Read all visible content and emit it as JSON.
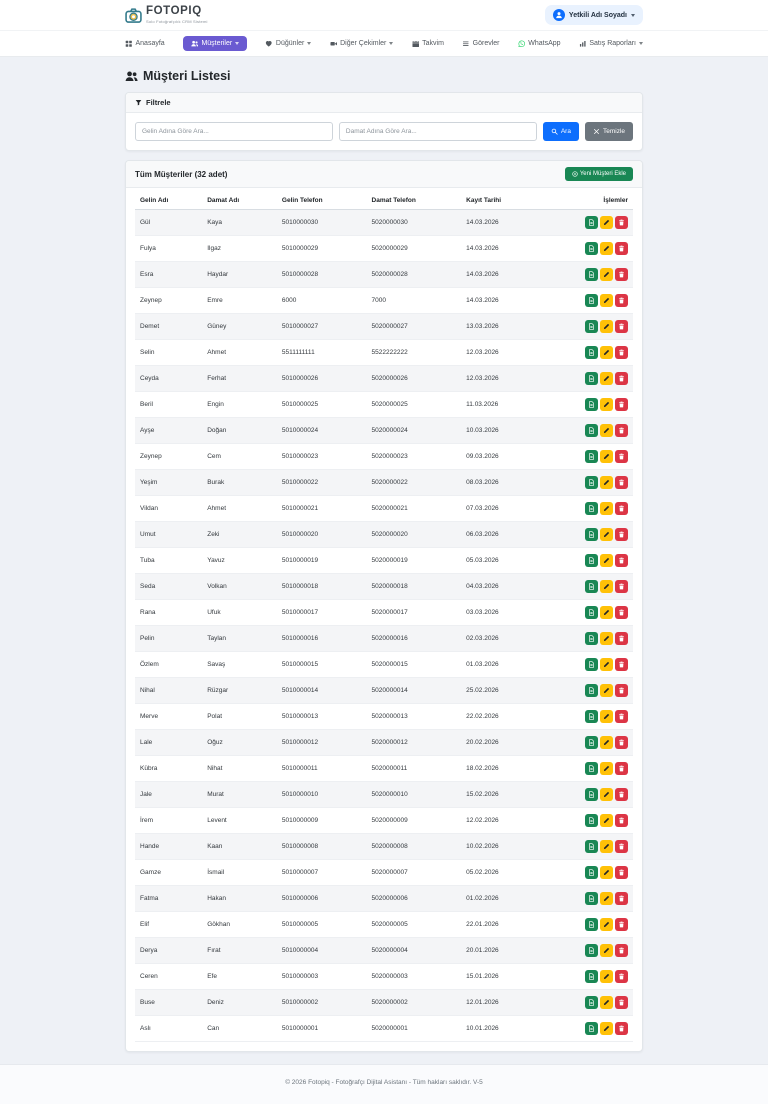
{
  "brand": {
    "name": "FOTOPIQ",
    "tagline": "Solo Fotoğrafçılık CRM Sistemi",
    "logo_icon": "camera-icon"
  },
  "user": {
    "name": "Yetkili Adı Soyadı",
    "avatar_icon": "person-icon"
  },
  "nav": {
    "items": [
      {
        "id": "anasayfa",
        "label": "Anasayfa",
        "icon": "grid-icon",
        "caret": false,
        "active": false
      },
      {
        "id": "musteriler",
        "label": "Müşteriler",
        "icon": "users-icon",
        "caret": true,
        "active": true
      },
      {
        "id": "dugunler",
        "label": "Düğünler",
        "icon": "heart-icon",
        "caret": true,
        "active": false
      },
      {
        "id": "diger-cekimler",
        "label": "Diğer Çekimler",
        "icon": "video-icon",
        "caret": true,
        "active": false
      },
      {
        "id": "takvim",
        "label": "Takvim",
        "icon": "calendar-icon",
        "caret": false,
        "active": false
      },
      {
        "id": "gorevler",
        "label": "Görevler",
        "icon": "tasks-icon",
        "caret": false,
        "active": false
      },
      {
        "id": "whatsapp",
        "label": "WhatsApp",
        "icon": "whatsapp-icon",
        "caret": false,
        "active": false
      },
      {
        "id": "satis-raporlari",
        "label": "Satış Raporları",
        "icon": "chart-icon",
        "caret": true,
        "active": false
      }
    ]
  },
  "page": {
    "title": "Müşteri Listesi",
    "title_icon": "users-icon"
  },
  "filter": {
    "title": "Filtrele",
    "title_icon": "funnel-icon",
    "bride_placeholder": "Gelin Adına Göre Ara...",
    "groom_placeholder": "Damat Adına Göre Ara...",
    "search_label": "Ara",
    "clear_label": "Temizle"
  },
  "customers": {
    "title": "Tüm Müşteriler (32 adet)",
    "count": 32,
    "add_button": "Yeni Müşteri Ekle",
    "add_button_icon": "plus-circle-icon",
    "columns": [
      "Gelin Adı",
      "Damat Adı",
      "Gelin Telefon",
      "Damat Telefon",
      "Kayıt Tarihi",
      "İşlemler"
    ],
    "actions": [
      {
        "id": "detail",
        "icon": "file-text-icon",
        "color": "#198754"
      },
      {
        "id": "edit",
        "icon": "pencil-icon",
        "color": "#ffc107"
      },
      {
        "id": "delete",
        "icon": "trash-icon",
        "color": "#dc3545"
      }
    ],
    "rows": [
      [
        "Gül",
        "Kaya",
        "5010000030",
        "5020000030",
        "14.03.2026"
      ],
      [
        "Fulya",
        "Ilgaz",
        "5010000029",
        "5020000029",
        "14.03.2026"
      ],
      [
        "Esra",
        "Haydar",
        "5010000028",
        "5020000028",
        "14.03.2026"
      ],
      [
        "Zeynep",
        "Emre",
        "6000",
        "7000",
        "14.03.2026"
      ],
      [
        "Demet",
        "Güney",
        "5010000027",
        "5020000027",
        "13.03.2026"
      ],
      [
        "Selin",
        "Ahmet",
        "5511111111",
        "5522222222",
        "12.03.2026"
      ],
      [
        "Ceyda",
        "Ferhat",
        "5010000026",
        "5020000026",
        "12.03.2026"
      ],
      [
        "Beril",
        "Engin",
        "5010000025",
        "5020000025",
        "11.03.2026"
      ],
      [
        "Ayşe",
        "Doğan",
        "5010000024",
        "5020000024",
        "10.03.2026"
      ],
      [
        "Zeynep",
        "Cem",
        "5010000023",
        "5020000023",
        "09.03.2026"
      ],
      [
        "Yeşim",
        "Burak",
        "5010000022",
        "5020000022",
        "08.03.2026"
      ],
      [
        "Vildan",
        "Ahmet",
        "5010000021",
        "5020000021",
        "07.03.2026"
      ],
      [
        "Umut",
        "Zeki",
        "5010000020",
        "5020000020",
        "06.03.2026"
      ],
      [
        "Tuba",
        "Yavuz",
        "5010000019",
        "5020000019",
        "05.03.2026"
      ],
      [
        "Seda",
        "Volkan",
        "5010000018",
        "5020000018",
        "04.03.2026"
      ],
      [
        "Rana",
        "Ufuk",
        "5010000017",
        "5020000017",
        "03.03.2026"
      ],
      [
        "Pelin",
        "Taylan",
        "5010000016",
        "5020000016",
        "02.03.2026"
      ],
      [
        "Özlem",
        "Savaş",
        "5010000015",
        "5020000015",
        "01.03.2026"
      ],
      [
        "Nihal",
        "Rüzgar",
        "5010000014",
        "5020000014",
        "25.02.2026"
      ],
      [
        "Merve",
        "Polat",
        "5010000013",
        "5020000013",
        "22.02.2026"
      ],
      [
        "Lale",
        "Oğuz",
        "5010000012",
        "5020000012",
        "20.02.2026"
      ],
      [
        "Kübra",
        "Nihat",
        "5010000011",
        "5020000011",
        "18.02.2026"
      ],
      [
        "Jale",
        "Murat",
        "5010000010",
        "5020000010",
        "15.02.2026"
      ],
      [
        "İrem",
        "Levent",
        "5010000009",
        "5020000009",
        "12.02.2026"
      ],
      [
        "Hande",
        "Kaan",
        "5010000008",
        "5020000008",
        "10.02.2026"
      ],
      [
        "Gamze",
        "İsmail",
        "5010000007",
        "5020000007",
        "05.02.2026"
      ],
      [
        "Fatma",
        "Hakan",
        "5010000006",
        "5020000006",
        "01.02.2026"
      ],
      [
        "Elif",
        "Gökhan",
        "5010000005",
        "5020000005",
        "22.01.2026"
      ],
      [
        "Derya",
        "Fırat",
        "5010000004",
        "5020000004",
        "20.01.2026"
      ],
      [
        "Ceren",
        "Efe",
        "5010000003",
        "5020000003",
        "15.01.2026"
      ],
      [
        "Buse",
        "Deniz",
        "5010000002",
        "5020000002",
        "12.01.2026"
      ],
      [
        "Aslı",
        "Can",
        "5010000001",
        "5020000001",
        "10.01.2026"
      ]
    ]
  },
  "footer": {
    "text": "© 2026 Fotopiq - Fotoğrafçı Dijital Asistanı - Tüm hakları saklıdır. V-5"
  },
  "colors": {
    "primary_blue": "#0d6efd",
    "secondary_gray": "#6c757d",
    "success_green": "#198754",
    "warning_yellow": "#ffc107",
    "danger_red": "#dc3545",
    "active_nav_purple": "#6a5ad1",
    "whatsapp_green": "#25D366",
    "page_background": "#eef1f6",
    "card_header_background": "#f8f9fa",
    "user_pill_background": "#e9f2fe"
  }
}
